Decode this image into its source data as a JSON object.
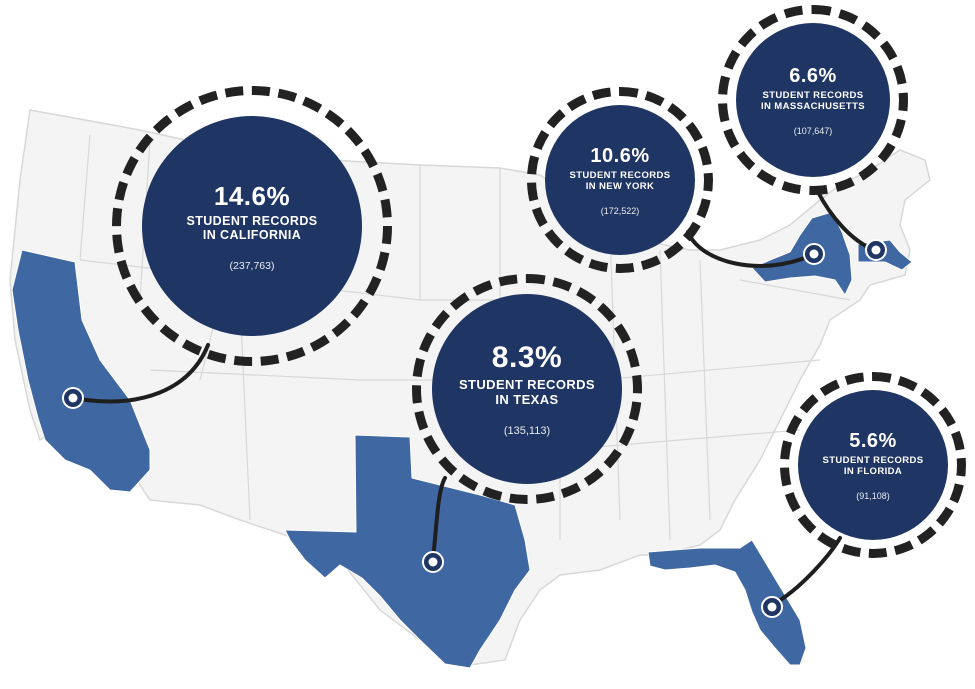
{
  "colors": {
    "land": "#f4f4f4",
    "border": "#d8d8d8",
    "highlight": "#3f67a2",
    "callout": "#1f3564",
    "ring": "#222222",
    "connector": "#1e1e1e"
  },
  "callouts": [
    {
      "id": "california",
      "percent": "14.6%",
      "line1": "STUDENT RECORDS",
      "line2": "IN CALIFORNIA",
      "count": "(237,763)"
    },
    {
      "id": "new-york",
      "percent": "10.6%",
      "line1": "STUDENT RECORDS",
      "line2": "IN NEW YORK",
      "count": "(172,522)"
    },
    {
      "id": "massachusetts",
      "percent": "6.6%",
      "line1": "STUDENT RECORDS",
      "line2": "IN MASSACHUSETTS",
      "count": "(107,647)"
    },
    {
      "id": "texas",
      "percent": "8.3%",
      "line1": "STUDENT RECORDS",
      "line2": "IN TEXAS",
      "count": "(135,113)"
    },
    {
      "id": "florida",
      "percent": "5.6%",
      "line1": "STUDENT RECORDS",
      "line2": "IN FLORIDA",
      "count": "(91,108)"
    }
  ]
}
